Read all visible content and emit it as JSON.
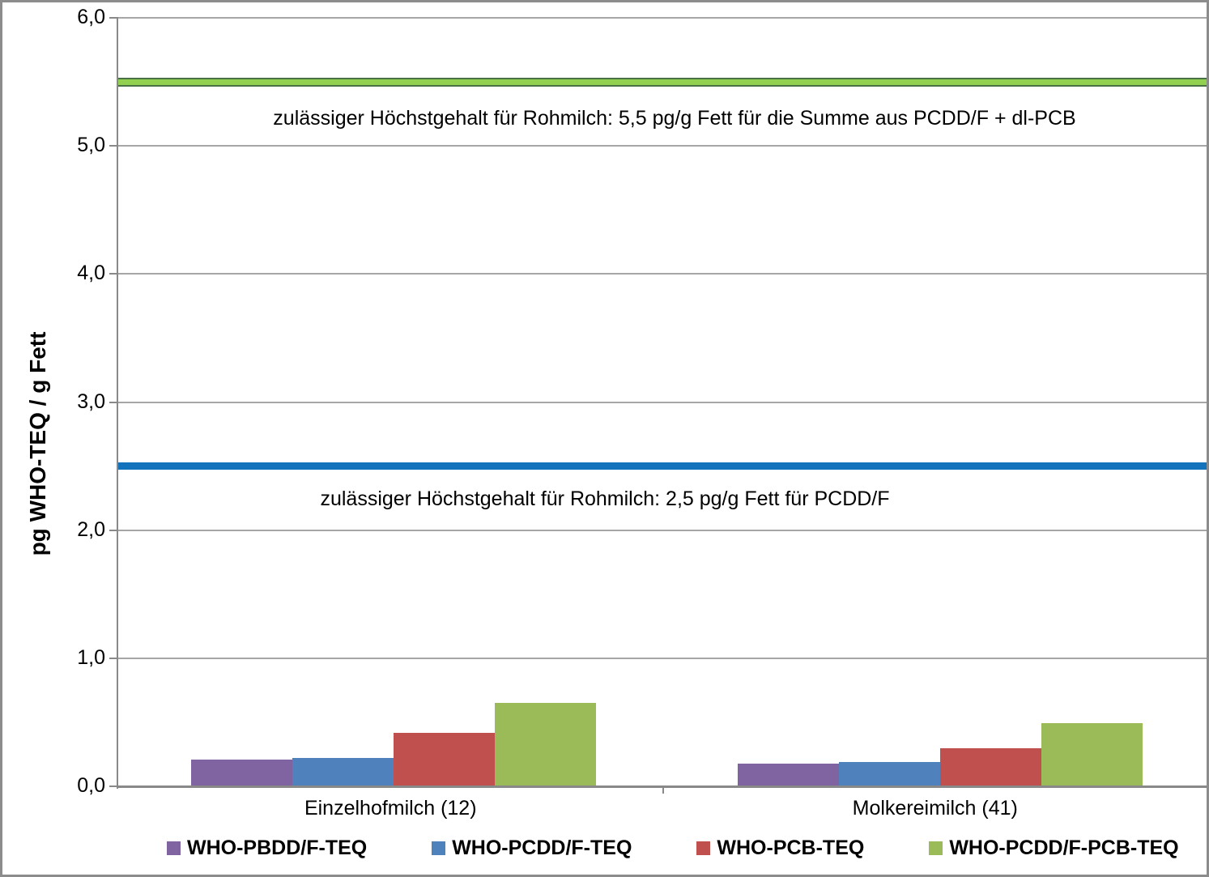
{
  "chart_data": {
    "type": "bar",
    "title": "",
    "xlabel": "",
    "ylabel": "pg WHO-TEQ / g Fett",
    "ylim": [
      0,
      6
    ],
    "grid": true,
    "legend_position": "bottom",
    "yticks": [
      {
        "value": 0,
        "label": "0,0"
      },
      {
        "value": 1,
        "label": "1,0"
      },
      {
        "value": 2,
        "label": "2,0"
      },
      {
        "value": 3,
        "label": "3,0"
      },
      {
        "value": 4,
        "label": "4,0"
      },
      {
        "value": 5,
        "label": "5,0"
      },
      {
        "value": 6,
        "label": "6,0"
      }
    ],
    "categories": [
      "Einzelhofmilch (12)",
      "Molkereimilch (41)"
    ],
    "series": [
      {
        "name": "WHO-PBDD/F-TEQ",
        "color": "#8064A2",
        "values": [
          0.21,
          0.18
        ]
      },
      {
        "name": "WHO-PCDD/F-TEQ",
        "color": "#4F81BD",
        "values": [
          0.22,
          0.19
        ]
      },
      {
        "name": "WHO-PCB-TEQ",
        "color": "#C0504D",
        "values": [
          0.42,
          0.3
        ]
      },
      {
        "name": "WHO-PCDD/F-PCB-TEQ",
        "color": "#9BBB59",
        "values": [
          0.65,
          0.49
        ]
      }
    ],
    "ref_lines": [
      {
        "value": 5.5,
        "color": "#92D050",
        "border_color": "#4A7046",
        "label": "zulässiger Höchstgehalt für Rohmilch: 5,5 pg/g Fett für die Summe aus PCDD/F + dl-PCB"
      },
      {
        "value": 2.5,
        "color": "#1272BC",
        "border_color": "#1272BC",
        "label": "zulässiger Höchstgehalt für Rohmilch: 2,5 pg/g Fett für PCDD/F"
      }
    ],
    "colors": {
      "gridline": "#A6A6A6",
      "axis": "#898989",
      "frame_border": "#8C8C8C",
      "text": "#000000"
    }
  }
}
